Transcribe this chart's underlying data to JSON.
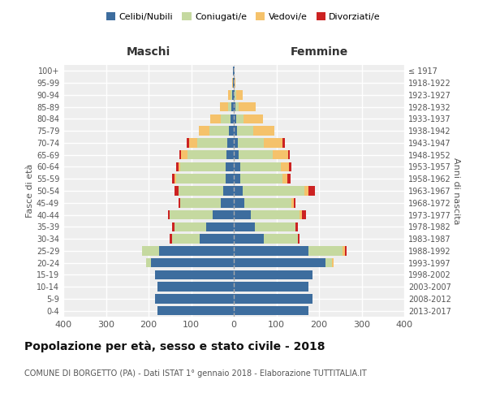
{
  "age_groups": [
    "0-4",
    "5-9",
    "10-14",
    "15-19",
    "20-24",
    "25-29",
    "30-34",
    "35-39",
    "40-44",
    "45-49",
    "50-54",
    "55-59",
    "60-64",
    "65-69",
    "70-74",
    "75-79",
    "80-84",
    "85-89",
    "90-94",
    "95-99",
    "100+"
  ],
  "birth_years": [
    "2013-2017",
    "2008-2012",
    "2003-2007",
    "1998-2002",
    "1993-1997",
    "1988-1992",
    "1983-1987",
    "1978-1982",
    "1973-1977",
    "1968-1972",
    "1963-1967",
    "1958-1962",
    "1953-1957",
    "1948-1952",
    "1943-1947",
    "1938-1942",
    "1933-1937",
    "1928-1932",
    "1923-1927",
    "1918-1922",
    "≤ 1917"
  ],
  "colors": {
    "celibi": "#3d6d9e",
    "coniugati": "#c5d9a0",
    "vedovi": "#f5c26b",
    "divorziati": "#cc2222"
  },
  "maschi": {
    "celibi": [
      180,
      185,
      180,
      185,
      195,
      175,
      80,
      65,
      50,
      30,
      25,
      20,
      20,
      18,
      15,
      12,
      8,
      5,
      4,
      2,
      1
    ],
    "coniugati": [
      0,
      0,
      0,
      0,
      10,
      40,
      65,
      75,
      100,
      95,
      105,
      115,
      105,
      90,
      70,
      45,
      22,
      8,
      4,
      0,
      0
    ],
    "vedovi": [
      0,
      0,
      0,
      0,
      0,
      0,
      0,
      0,
      0,
      0,
      0,
      5,
      5,
      15,
      20,
      25,
      25,
      20,
      5,
      1,
      0
    ],
    "divorziati": [
      0,
      0,
      0,
      0,
      0,
      0,
      5,
      5,
      5,
      5,
      10,
      5,
      5,
      5,
      5,
      0,
      0,
      0,
      0,
      0,
      0
    ]
  },
  "femmine": {
    "celibi": [
      175,
      185,
      175,
      185,
      215,
      175,
      70,
      50,
      40,
      25,
      20,
      15,
      15,
      12,
      10,
      8,
      5,
      4,
      2,
      1,
      1
    ],
    "coniugati": [
      0,
      0,
      0,
      0,
      15,
      80,
      80,
      95,
      115,
      110,
      145,
      100,
      95,
      80,
      60,
      38,
      18,
      8,
      3,
      0,
      0
    ],
    "vedovi": [
      0,
      0,
      0,
      0,
      5,
      5,
      0,
      0,
      5,
      5,
      10,
      10,
      20,
      35,
      45,
      50,
      45,
      40,
      15,
      2,
      0
    ],
    "divorziati": [
      0,
      0,
      0,
      0,
      0,
      5,
      5,
      5,
      10,
      5,
      15,
      8,
      5,
      5,
      5,
      0,
      0,
      0,
      0,
      0,
      0
    ]
  },
  "title": "Popolazione per età, sesso e stato civile - 2018",
  "subtitle": "COMUNE DI BORGETTO (PA) - Dati ISTAT 1° gennaio 2018 - Elaborazione TUTTITALIA.IT",
  "xlabel_left": "Maschi",
  "xlabel_right": "Femmine",
  "ylabel_left": "Fasce di età",
  "ylabel_right": "Anni di nascita",
  "xlim": 400,
  "legend_labels": [
    "Celibi/Nubili",
    "Coniugati/e",
    "Vedovi/e",
    "Divorziati/e"
  ]
}
